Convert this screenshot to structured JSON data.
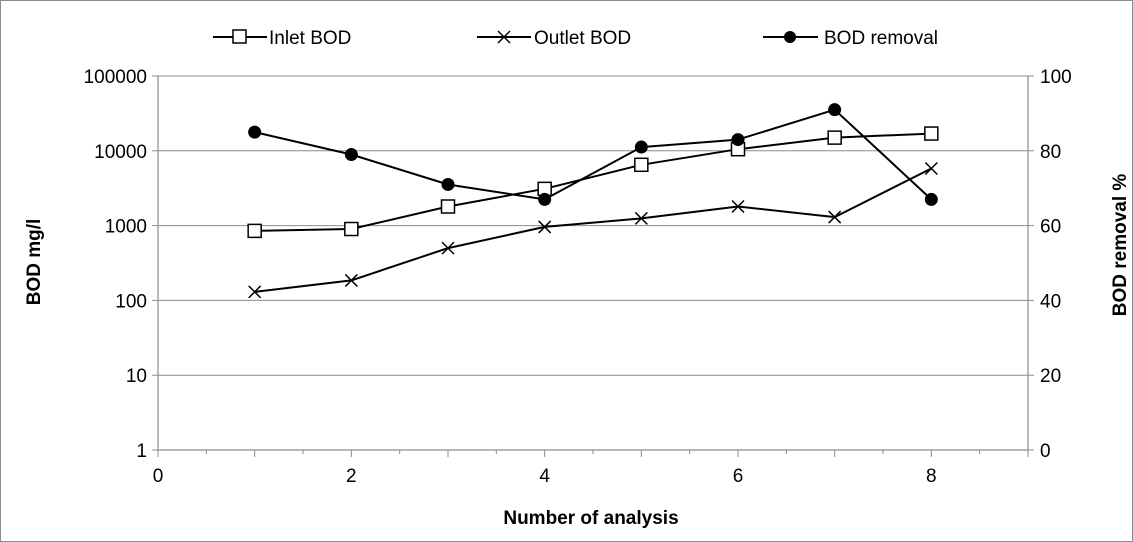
{
  "chart_data": {
    "type": "line",
    "x_label": "Number of  analysis",
    "y_left_label": "BOD  mg/l",
    "y_right_label": "BOD removal  %",
    "x_range": [
      0,
      9
    ],
    "x_ticks": [
      0,
      2,
      4,
      6,
      8
    ],
    "y_left_scale": "log",
    "y_left_range": [
      1,
      100000
    ],
    "y_left_ticks": [
      1,
      10,
      100,
      1000,
      10000,
      100000
    ],
    "y_right_range": [
      0,
      100
    ],
    "y_right_ticks": [
      0,
      20,
      40,
      60,
      80,
      100
    ],
    "grid": "horizontal major gridlines on",
    "legend_position": "top",
    "series": [
      {
        "name": "Inlet BOD",
        "axis": "left",
        "marker": "open-square",
        "x": [
          1,
          2,
          3,
          4,
          5,
          6,
          7,
          8
        ],
        "values": [
          850,
          900,
          1800,
          3100,
          6500,
          10500,
          15000,
          17000
        ]
      },
      {
        "name": "Outlet BOD",
        "axis": "left",
        "marker": "x",
        "x": [
          1,
          2,
          3,
          4,
          5,
          6,
          7,
          8
        ],
        "values": [
          130,
          185,
          500,
          960,
          1250,
          1800,
          1300,
          5800
        ]
      },
      {
        "name": "BOD removal",
        "axis": "right",
        "marker": "filled-circle",
        "x": [
          1,
          2,
          3,
          4,
          5,
          6,
          7,
          8
        ],
        "values": [
          85,
          79,
          71,
          67,
          81,
          83,
          91,
          67
        ]
      }
    ]
  },
  "colors": {
    "series_line": "#000000",
    "gridline": "#8c8c8c",
    "plot_border": "#8c8c8c"
  }
}
